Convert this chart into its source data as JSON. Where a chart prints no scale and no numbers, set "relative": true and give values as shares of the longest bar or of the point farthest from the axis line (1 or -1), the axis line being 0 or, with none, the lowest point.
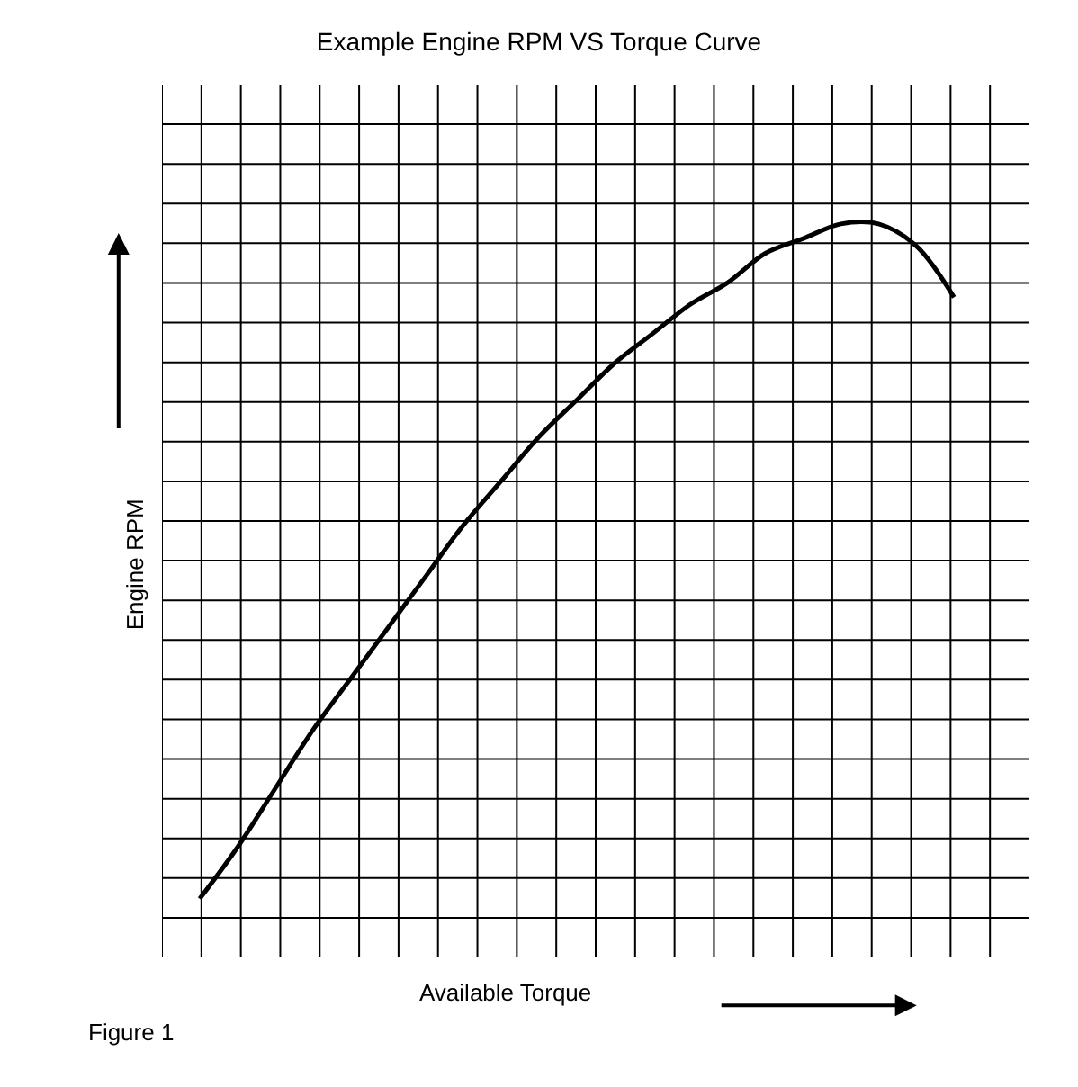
{
  "chart_data": {
    "type": "line",
    "title": "Example Engine RPM VS Torque Curve",
    "xlabel": "Available Torque",
    "ylabel": "Engine RPM",
    "relative": true,
    "grid": true,
    "legend": false,
    "marker": "none",
    "line_style": "solid",
    "categories": [
      null,
      null,
      null,
      null,
      null,
      null,
      null,
      null,
      null,
      null,
      null,
      null,
      null,
      null,
      null,
      null,
      null,
      null,
      null,
      null,
      null
    ],
    "series": [
      {
        "color": "#000000",
        "values": [
          0.08,
          0.15,
          0.23,
          0.31,
          0.38,
          0.45,
          0.52,
          0.59,
          0.65,
          0.71,
          0.76,
          0.81,
          0.85,
          0.89,
          0.92,
          0.96,
          0.98,
          1.0,
          1.0,
          0.97,
          0.9
        ]
      }
    ],
    "annotations": [
      "Figure 1"
    ]
  }
}
